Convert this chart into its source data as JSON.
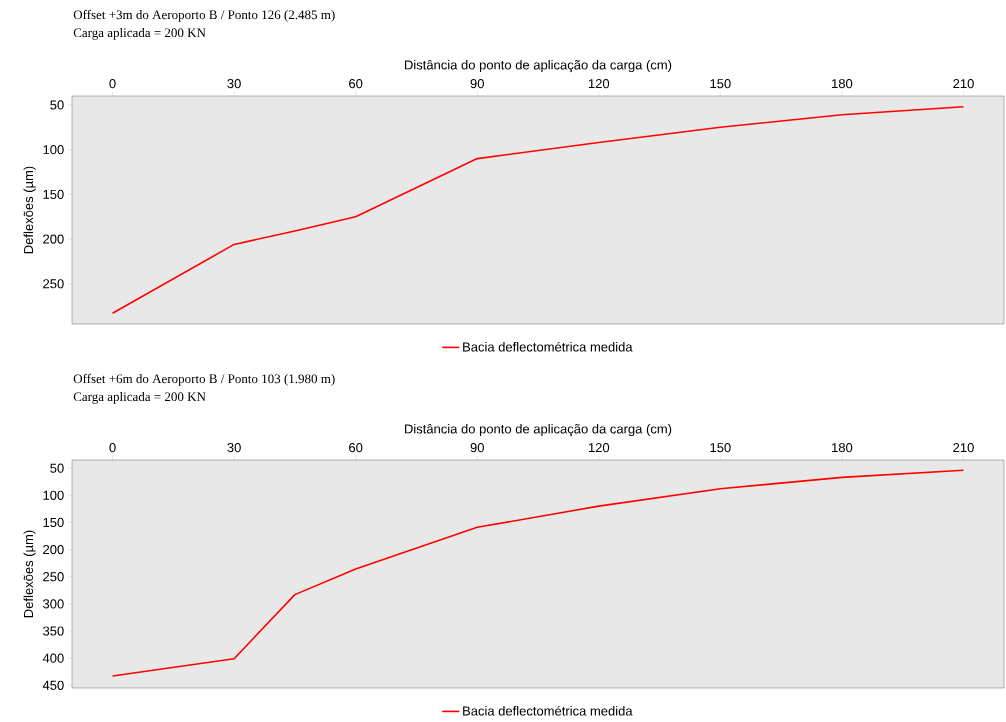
{
  "chart_data": [
    {
      "type": "line",
      "title": "Offset +3m do Aeroporto B / Ponto 126 (2.485 m)",
      "subtitle": "Carga aplicada = 200 KN",
      "xlabel": "Distância do ponto de aplicação da carga (cm)",
      "ylabel": "Deflexões (µm)",
      "x": [
        0,
        30,
        45,
        60,
        90,
        120,
        150,
        180,
        210
      ],
      "series": [
        {
          "name": "Bacia deflectométrica medida",
          "color": "#ff0000",
          "values": [
            283,
            206,
            191,
            175,
            110,
            92,
            75,
            61,
            52
          ]
        }
      ],
      "xlim": [
        -10,
        220
      ],
      "ylim": [
        295,
        40
      ],
      "xticks": [
        0,
        30,
        60,
        90,
        120,
        150,
        180,
        210
      ],
      "yticks": [
        50,
        100,
        150,
        200,
        250
      ],
      "legend": "bottom"
    },
    {
      "type": "line",
      "title": "Offset +6m do Aeroporto B / Ponto 103 (1.980 m)",
      "subtitle": "Carga aplicada = 200 KN",
      "xlabel": "Distância do ponto de aplicação da carga (cm)",
      "ylabel": "Deflexões (µm)",
      "x": [
        0,
        30,
        45,
        60,
        90,
        120,
        150,
        180,
        210
      ],
      "series": [
        {
          "name": "Bacia deflectométrica medida",
          "color": "#ff0000",
          "values": [
            433,
            401,
            283,
            236,
            159,
            120,
            88,
            67,
            54
          ]
        }
      ],
      "xlim": [
        -10,
        220
      ],
      "ylim": [
        455,
        35
      ],
      "xticks": [
        0,
        30,
        60,
        90,
        120,
        150,
        180,
        210
      ],
      "yticks": [
        50,
        100,
        150,
        200,
        250,
        300,
        350,
        400,
        450
      ],
      "legend": "bottom"
    }
  ]
}
